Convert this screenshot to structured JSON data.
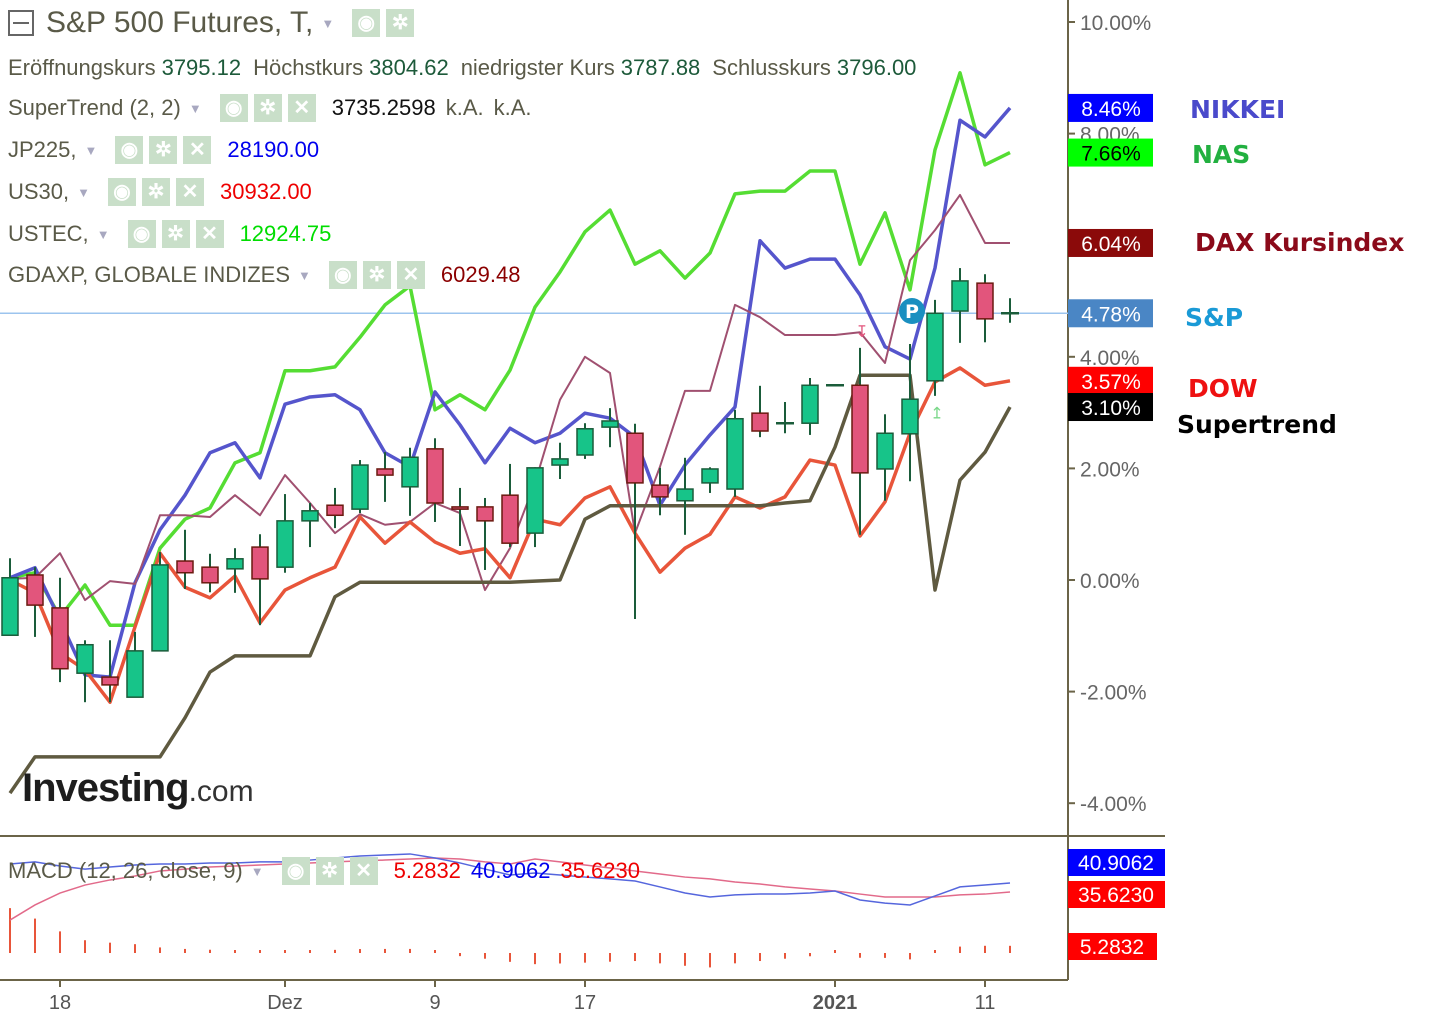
{
  "header": {
    "title": "S&P 500 Futures, T,",
    "ohlc": [
      {
        "label": "Eröffnungskurs",
        "value": "3795.12"
      },
      {
        "label": "Höchstkurs",
        "value": "3804.62"
      },
      {
        "label": "niedrigster Kurs",
        "value": "3787.88"
      },
      {
        "label": "Schlusskurs",
        "value": "3796.00"
      }
    ]
  },
  "indicators": [
    {
      "label": "SuperTrend (2, 2)",
      "value": "3735.2598",
      "extra1": "k.A.",
      "extra2": "k.A.",
      "color": "#111111"
    },
    {
      "label": "JP225,",
      "value": "28190.00",
      "color": "#0000ee"
    },
    {
      "label": "US30,",
      "value": "30932.00",
      "color": "#ee0000"
    },
    {
      "label": "USTEC,",
      "value": "12924.75",
      "color": "#00dd00"
    },
    {
      "label": "GDAXP, GLOBALE INDIZES",
      "value": "6029.48",
      "color": "#8b0000"
    }
  ],
  "macd_legend": {
    "label": "MACD (12, 26, close, 9)",
    "histogram_value": "5.2832",
    "macd_value": "40.9062",
    "signal_value": "35.6230"
  },
  "logo": {
    "text": "Investing",
    "suffix": ".com"
  },
  "series_tags": [
    {
      "name": "NIKKEI",
      "color": "#4a4acb"
    },
    {
      "name": "NAS",
      "color": "#22b040"
    },
    {
      "name": "DAX Kursindex",
      "color": "#8b0a1a"
    },
    {
      "name": "S&P",
      "color": "#1a9ad6"
    },
    {
      "name": "DOW",
      "color": "#ee1111"
    },
    {
      "name": "Supertrend",
      "color": "#000000"
    }
  ],
  "chart_data": [
    {
      "type": "candlestick+line",
      "yunit": "%",
      "ylim": [
        -4.5,
        10.4
      ],
      "yticks": [
        "10.00%",
        "8.00%",
        "4.00%",
        "2.00%",
        "0.00%",
        "-2.00%",
        "-4.00%"
      ],
      "ytick_values": [
        10,
        8,
        4,
        2,
        0,
        -2,
        -4
      ],
      "xtick_labels": [
        {
          "index": 2,
          "label": "18",
          "bold": false
        },
        {
          "index": 11,
          "label": "Dez",
          "bold": false
        },
        {
          "index": 17,
          "label": "9",
          "bold": false
        },
        {
          "index": 23,
          "label": "17",
          "bold": false
        },
        {
          "index": 33,
          "label": "2021",
          "bold": true
        },
        {
          "index": 39,
          "label": "11",
          "bold": false
        }
      ],
      "candles": {
        "open": [
          -0.99,
          0.09,
          -0.5,
          -1.67,
          -1.74,
          -2.1,
          -1.27,
          0.34,
          0.23,
          0.2,
          0.59,
          0.23,
          1.06,
          1.34,
          1.27,
          1.99,
          1.67,
          2.35,
          1.31,
          1.31,
          1.52,
          0.84,
          2.06,
          2.24,
          2.74,
          2.63,
          1.7,
          1.42,
          1.74,
          1.63,
          2.99,
          2.81,
          2.81,
          3.49,
          3.49,
          1.99,
          2.62,
          3.57,
          4.82,
          5.32,
          4.78
        ],
        "high": [
          0.39,
          0.23,
          0.04,
          -1.08,
          -1.08,
          -0.93,
          0.5,
          0.9,
          0.47,
          0.57,
          0.82,
          1.54,
          1.38,
          1.65,
          2.15,
          2.29,
          2.37,
          2.54,
          1.65,
          1.47,
          2.08,
          2.02,
          2.46,
          2.81,
          3.08,
          2.8,
          2.01,
          2.19,
          2.02,
          3.05,
          3.48,
          3.19,
          3.62,
          3.49,
          4.16,
          2.97,
          4.23,
          5.02,
          5.59,
          5.48,
          5.05
        ],
        "low": [
          -0.99,
          -1.02,
          -1.83,
          -2.19,
          -2.19,
          -2.1,
          -1.27,
          -0.16,
          -0.22,
          -0.23,
          -0.81,
          0.13,
          0.59,
          0.93,
          1.2,
          1.4,
          1.15,
          1.04,
          0.61,
          0.18,
          0.59,
          0.59,
          1.81,
          2.17,
          2.38,
          -0.7,
          1.16,
          0.81,
          1.56,
          1.49,
          2.56,
          2.63,
          2.6,
          3.49,
          0.81,
          1.42,
          1.77,
          3.3,
          4.25,
          4.26,
          4.61
        ],
        "close": [
          0.04,
          -0.45,
          -1.59,
          -1.16,
          -1.88,
          -1.27,
          0.27,
          0.13,
          -0.05,
          0.38,
          0.02,
          1.06,
          1.24,
          1.16,
          2.06,
          1.88,
          2.2,
          1.38,
          1.27,
          1.06,
          0.66,
          2.01,
          2.17,
          2.71,
          2.85,
          1.74,
          1.49,
          1.63,
          1.99,
          2.89,
          2.67,
          2.81,
          3.49,
          3.49,
          1.92,
          2.63,
          3.24,
          4.78,
          5.36,
          4.68,
          4.78
        ],
        "up_color": "#17c489",
        "down_color": "#e2557c"
      },
      "series": [
        {
          "name": "NAS",
          "color": "#55dd33",
          "last_label": "7.66%",
          "label_bg": "#00ff00",
          "label_fg": "#000000",
          "values": [
            0.04,
            0.13,
            -0.66,
            -0.09,
            -0.81,
            -0.81,
            0.57,
            1.09,
            1.29,
            2.1,
            2.28,
            3.75,
            3.75,
            3.82,
            4.35,
            4.93,
            5.27,
            3.05,
            3.32,
            3.05,
            3.76,
            4.89,
            5.52,
            6.24,
            6.63,
            5.66,
            5.9,
            5.41,
            5.86,
            6.92,
            6.97,
            6.97,
            7.33,
            7.33,
            5.66,
            6.58,
            5.2,
            7.71,
            9.09,
            7.44,
            7.66
          ]
        },
        {
          "name": "NIKKEI",
          "color": "#5555cc",
          "last_label": "8.46%",
          "label_bg": "#0000ff",
          "label_fg": "#ffffff",
          "values": [
            0.04,
            0.22,
            -0.72,
            -1.7,
            -1.74,
            -0.05,
            0.9,
            1.52,
            2.28,
            2.46,
            1.83,
            3.15,
            3.28,
            3.32,
            3.05,
            2.28,
            2.03,
            3.37,
            2.78,
            2.1,
            2.72,
            2.46,
            2.63,
            2.99,
            2.9,
            2.56,
            1.34,
            2.06,
            2.6,
            3.1,
            6.08,
            5.59,
            5.75,
            5.75,
            5.11,
            4.18,
            3.96,
            5.59,
            8.24,
            7.94,
            8.46
          ]
        },
        {
          "name": "DAX Kursindex",
          "color": "#a05070",
          "last_label": "6.04%",
          "label_bg": "#8b0a0a",
          "label_fg": "#ffffff",
          "values": [
            0.02,
            0.04,
            0.48,
            -0.36,
            -0.02,
            -0.07,
            1.16,
            1.16,
            1.13,
            1.52,
            1.16,
            1.88,
            1.38,
            0.84,
            1.18,
            0.99,
            1.04,
            1.38,
            1.2,
            -0.18,
            0.57,
            1.74,
            3.23,
            4.0,
            3.71,
            0.84,
            2.03,
            3.39,
            3.39,
            4.93,
            4.71,
            4.39,
            4.39,
            4.39,
            4.44,
            3.89,
            5.73,
            6.27,
            6.9,
            6.04,
            6.04
          ]
        },
        {
          "name": "DOW",
          "color": "#e8553a",
          "last_label": "3.57%",
          "label_bg": "#ff0000",
          "label_fg": "#ffffff",
          "values": [
            0.0,
            -0.23,
            -1.31,
            -1.61,
            -2.19,
            -0.84,
            0.48,
            -0.13,
            -0.32,
            0.07,
            -0.77,
            -0.18,
            0.04,
            0.23,
            1.13,
            0.66,
            1.04,
            0.68,
            0.48,
            0.56,
            0.04,
            1.09,
            0.99,
            1.47,
            1.67,
            0.84,
            0.14,
            0.57,
            0.82,
            1.49,
            1.29,
            1.49,
            2.15,
            2.06,
            0.79,
            1.4,
            2.63,
            3.55,
            3.8,
            3.49,
            3.57
          ]
        },
        {
          "name": "Supertrend",
          "color": "#5f5a40",
          "last_label": "3.10%",
          "label_bg": "#000000",
          "label_fg": "#ffffff",
          "values": [
            -3.82,
            -3.17,
            -3.17,
            -3.17,
            -3.17,
            -3.17,
            -3.17,
            -2.47,
            -1.65,
            -1.36,
            -1.36,
            -1.36,
            -1.36,
            -0.3,
            -0.04,
            -0.04,
            -0.04,
            -0.04,
            -0.04,
            -0.04,
            -0.04,
            -0.02,
            0.0,
            1.09,
            1.33,
            1.33,
            1.33,
            1.33,
            1.33,
            1.33,
            1.33,
            1.38,
            1.42,
            2.38,
            3.67,
            3.67,
            3.67,
            -0.18,
            1.79,
            2.29,
            3.1
          ]
        },
        {
          "name": "S&P",
          "color": "#9cc4ee",
          "last_label": "4.78%",
          "label_bg": "#4a86c5",
          "label_fg": "#ffffff",
          "horizontal": 4.78
        }
      ],
      "markers": [
        {
          "index": 36,
          "value": 4.82,
          "symbol": "P",
          "color": "#1a8fc0"
        },
        {
          "index": 34,
          "value": 4.46,
          "symbol": "↧",
          "color": "#e2557c"
        },
        {
          "index": 37,
          "value": 3.0,
          "symbol": "↥",
          "color": "#7bd88a"
        }
      ]
    },
    {
      "type": "macd",
      "macd": [
        52.1,
        53.3,
        50.9,
        49.1,
        50.3,
        51.5,
        52.1,
        52.1,
        52.7,
        52.7,
        53.3,
        53.3,
        54.4,
        55.6,
        56.8,
        57.4,
        58.0,
        55.6,
        52.7,
        49.1,
        45.6,
        46.8,
        45.6,
        44.4,
        43.3,
        42.1,
        38.6,
        35.0,
        32.7,
        33.9,
        34.4,
        34.4,
        35.0,
        36.2,
        30.9,
        29.1,
        28.0,
        33.3,
        38.6,
        39.7,
        40.9062
      ],
      "signal": [
        19.1,
        28.0,
        35.0,
        39.7,
        42.7,
        45.0,
        48.0,
        49.1,
        50.3,
        50.9,
        51.5,
        52.1,
        52.7,
        53.3,
        53.9,
        54.4,
        55.0,
        55.6,
        55.0,
        53.3,
        52.1,
        55.0,
        53.3,
        51.5,
        49.7,
        48.0,
        46.2,
        44.4,
        43.3,
        41.5,
        40.3,
        38.6,
        37.4,
        36.2,
        34.4,
        32.7,
        32.7,
        32.7,
        33.9,
        34.4,
        35.623
      ],
      "macd_color": "#5566dd",
      "signal_color": "#e26a8a",
      "histogram_color": "#e8553a",
      "labels": [
        {
          "text": "40.9062",
          "bg": "#0000ff"
        },
        {
          "text": "35.6230",
          "bg": "#ff0000"
        },
        {
          "text": "5.2832",
          "bg": "#ff0000"
        }
      ]
    }
  ]
}
